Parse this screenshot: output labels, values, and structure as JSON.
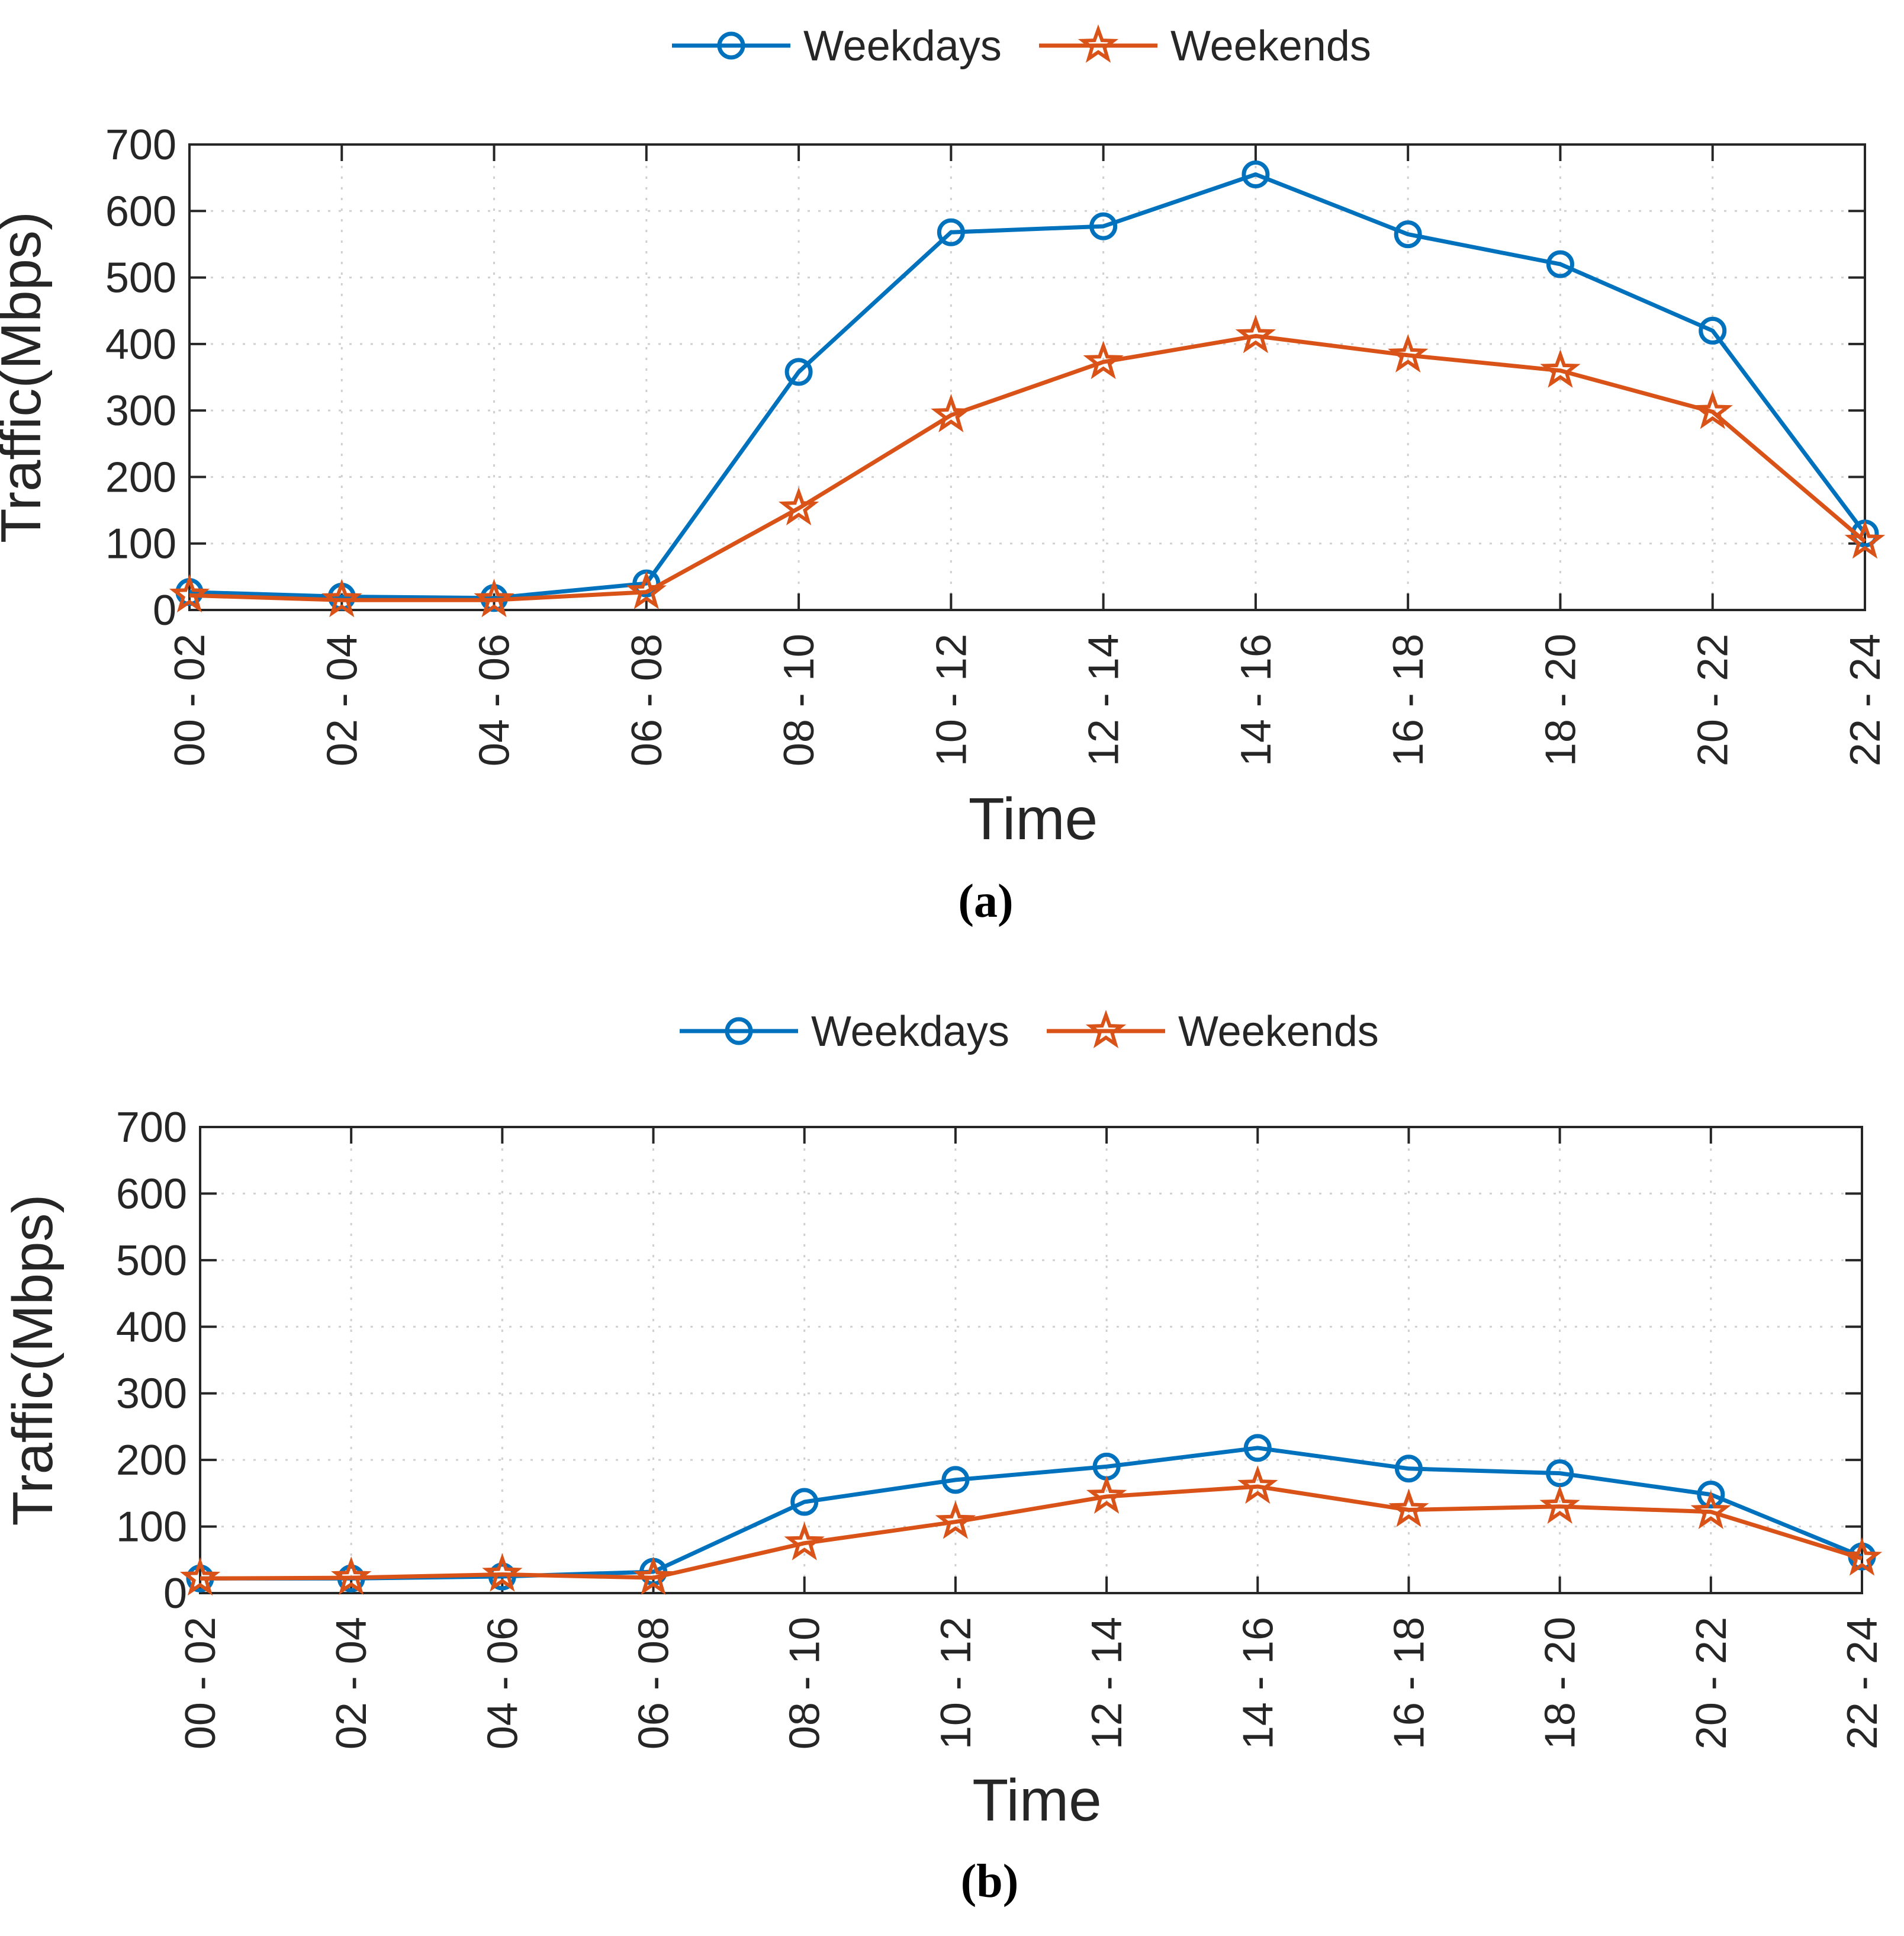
{
  "colors": {
    "weekdays": "#0072BD",
    "weekends": "#D95319",
    "axis": "#262626",
    "grid": "#d0d0d0"
  },
  "chart_data": [
    {
      "type": "line",
      "caption": "(a)",
      "xlabel": "Time",
      "ylabel": "Traffic(Mbps)",
      "ylim": [
        0,
        700
      ],
      "yticks": [
        "0",
        "100",
        "200",
        "300",
        "400",
        "500",
        "600",
        "700"
      ],
      "grid": true,
      "legend_position": "top-center",
      "categories": [
        "00 - 02",
        "02 - 04",
        "04 - 06",
        "06 - 08",
        "08 - 10",
        "10 - 12",
        "12 - 14",
        "14 - 16",
        "16 - 18",
        "18 - 20",
        "20 - 22",
        "22 - 24"
      ],
      "series": [
        {
          "name": "Weekdays",
          "marker": "circle",
          "values": [
            27,
            20,
            18,
            40,
            358,
            568,
            577,
            655,
            565,
            520,
            420,
            115
          ]
        },
        {
          "name": "Weekends",
          "marker": "star",
          "values": [
            22,
            15,
            15,
            27,
            153,
            293,
            373,
            412,
            383,
            360,
            298,
            103
          ]
        }
      ]
    },
    {
      "type": "line",
      "caption": "(b)",
      "xlabel": "Time",
      "ylabel": "Traffic(Mbps)",
      "ylim": [
        0,
        700
      ],
      "yticks": [
        "0",
        "100",
        "200",
        "300",
        "400",
        "500",
        "600",
        "700"
      ],
      "grid": true,
      "legend_position": "top-center",
      "categories": [
        "00 - 02",
        "02 - 04",
        "04 - 06",
        "06 - 08",
        "08 - 10",
        "10 - 12",
        "12 - 14",
        "14 - 16",
        "16 - 18",
        "18 - 20",
        "20 - 22",
        "22 - 24"
      ],
      "series": [
        {
          "name": "Weekdays",
          "marker": "circle",
          "values": [
            22,
            22,
            25,
            32,
            137,
            170,
            190,
            218,
            187,
            180,
            148,
            55
          ]
        },
        {
          "name": "Weekends",
          "marker": "star",
          "values": [
            22,
            23,
            28,
            23,
            75,
            107,
            145,
            160,
            125,
            130,
            122,
            52
          ]
        }
      ]
    }
  ]
}
